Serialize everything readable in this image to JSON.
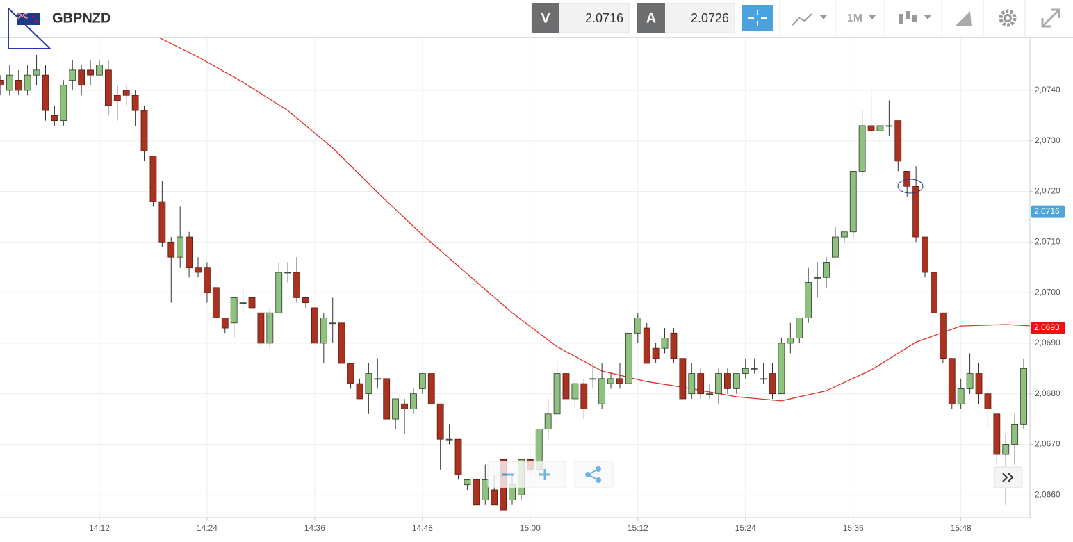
{
  "toolbar": {
    "symbol": "GBPNZD",
    "sell_label": "V",
    "sell_price": "2.0716",
    "buy_label": "A",
    "buy_price": "2.0726",
    "timeframe": "1M"
  },
  "chart_data": {
    "type": "candlestick",
    "x": [
      "14:01",
      "14:02",
      "14:03",
      "14:04",
      "14:05",
      "14:06",
      "14:07",
      "14:08",
      "14:09",
      "14:10",
      "14:11",
      "14:12",
      "14:13",
      "14:14",
      "14:15",
      "14:16",
      "14:17",
      "14:18",
      "14:19",
      "14:20",
      "14:21",
      "14:22",
      "14:23",
      "14:24",
      "14:25",
      "14:26",
      "14:27",
      "14:28",
      "14:29",
      "14:30",
      "14:31",
      "14:32",
      "14:33",
      "14:34",
      "14:35",
      "14:36",
      "14:37",
      "14:38",
      "14:39",
      "14:40",
      "14:41",
      "14:42",
      "14:43",
      "14:44",
      "14:45",
      "14:46",
      "14:47",
      "14:48",
      "14:49",
      "14:50",
      "14:51",
      "14:52",
      "14:53",
      "14:54",
      "14:55",
      "14:56",
      "14:57",
      "14:58",
      "14:59",
      "15:00",
      "15:01",
      "15:02",
      "15:03",
      "15:04",
      "15:05",
      "15:06",
      "15:07",
      "15:08",
      "15:09",
      "15:10",
      "15:11",
      "15:12",
      "15:13",
      "15:14",
      "15:15",
      "15:16",
      "15:17",
      "15:18",
      "15:19",
      "15:20",
      "15:21",
      "15:22",
      "15:23",
      "15:24",
      "15:25",
      "15:26",
      "15:27",
      "15:28",
      "15:29",
      "15:30",
      "15:31",
      "15:32",
      "15:33",
      "15:34",
      "15:35",
      "15:36",
      "15:37",
      "15:38",
      "15:39",
      "15:40",
      "15:41",
      "15:42",
      "15:43",
      "15:44",
      "15:45",
      "15:46",
      "15:47",
      "15:48",
      "15:49",
      "15:50",
      "15:51",
      "15:52",
      "15:53",
      "15:54",
      "15:55"
    ],
    "open": [
      2.0742,
      2.074,
      2.0742,
      2.074,
      2.0743,
      2.0743,
      2.0735,
      2.0734,
      2.0742,
      2.0744,
      2.0744,
      2.0743,
      2.0744,
      2.0739,
      2.074,
      2.0739,
      2.0736,
      2.0727,
      2.0718,
      2.071,
      2.0707,
      2.0711,
      2.0705,
      2.0705,
      2.0701,
      2.0695,
      2.0694,
      2.0698,
      2.0699,
      2.0696,
      2.069,
      2.0696,
      2.0704,
      2.0704,
      2.0699,
      2.0697,
      2.069,
      2.0694,
      2.0694,
      2.0686,
      2.0682,
      2.068,
      2.0683,
      2.0683,
      2.0675,
      2.0678,
      2.0677,
      2.0681,
      2.0684,
      2.0678,
      2.0671,
      2.0671,
      2.0662,
      2.0663,
      2.0659,
      2.0661,
      2.0667,
      2.0659,
      2.066,
      2.0667,
      2.0665,
      2.0673,
      2.0676,
      2.0684,
      2.0679,
      2.0682,
      2.0683,
      2.0678,
      2.0682,
      2.0683,
      2.0682,
      2.0692,
      2.0693,
      2.0689,
      2.0689,
      2.0692,
      2.0687,
      2.068,
      2.0684,
      2.068,
      2.068,
      2.0684,
      2.0681,
      2.0684,
      2.0685,
      2.0683,
      2.0684,
      2.068,
      2.069,
      2.0691,
      2.0695,
      2.0703,
      2.0703,
      2.0707,
      2.0711,
      2.0712,
      2.0724,
      2.0733,
      2.0732,
      2.0733,
      2.0734,
      2.0724,
      2.0721,
      2.0711,
      2.0704,
      2.0696,
      2.0687,
      2.0678,
      2.0681,
      2.0684,
      2.068,
      2.0676,
      2.0668,
      2.067,
      2.0674
    ],
    "high": [
      2.0743,
      2.0745,
      2.0744,
      2.0745,
      2.0747,
      2.0745,
      2.0737,
      2.0742,
      2.0746,
      2.0745,
      2.0746,
      2.0746,
      2.0746,
      2.0741,
      2.0741,
      2.074,
      2.0737,
      2.0727,
      2.0722,
      2.0711,
      2.0717,
      2.0712,
      2.0707,
      2.0706,
      2.0701,
      2.0695,
      2.0699,
      2.0701,
      2.0701,
      2.0696,
      2.0697,
      2.0706,
      2.0706,
      2.0707,
      2.0699,
      2.0697,
      2.0696,
      2.0699,
      2.0694,
      2.0686,
      2.0683,
      2.0686,
      2.0687,
      2.0683,
      2.0679,
      2.0679,
      2.0681,
      2.0684,
      2.0684,
      2.0678,
      2.0674,
      2.0671,
      2.0663,
      2.0663,
      2.0666,
      2.0664,
      2.0667,
      2.0664,
      2.0667,
      2.0667,
      2.0673,
      2.0679,
      2.0687,
      2.0684,
      2.0683,
      2.0683,
      2.0686,
      2.0686,
      2.0684,
      2.0686,
      2.0692,
      2.0696,
      2.0694,
      2.069,
      2.0693,
      2.0693,
      2.0687,
      2.0686,
      2.0685,
      2.0682,
      2.0685,
      2.0685,
      2.0684,
      2.0687,
      2.0687,
      2.0686,
      2.0686,
      2.0691,
      2.0694,
      2.0695,
      2.0705,
      2.0706,
      2.0707,
      2.0713,
      2.0712,
      2.0724,
      2.0736,
      2.074,
      2.0733,
      2.0738,
      2.0734,
      2.0724,
      2.0725,
      2.0711,
      2.0704,
      2.0696,
      2.0687,
      2.0683,
      2.0688,
      2.0686,
      2.0681,
      2.0676,
      2.0672,
      2.0676,
      2.0687
    ],
    "low": [
      2.0739,
      2.0739,
      2.0739,
      2.0739,
      2.0741,
      2.0734,
      2.0733,
      2.0733,
      2.074,
      2.0739,
      2.0741,
      2.0743,
      2.0735,
      2.0734,
      2.0737,
      2.0733,
      2.0726,
      2.0717,
      2.0709,
      2.0698,
      2.0705,
      2.0703,
      2.0703,
      2.0698,
      2.0695,
      2.0692,
      2.0691,
      2.0696,
      2.0695,
      2.0689,
      2.0689,
      2.0696,
      2.0702,
      2.0698,
      2.0697,
      2.069,
      2.0686,
      2.069,
      2.0686,
      2.0681,
      2.0679,
      2.0676,
      2.0681,
      2.0675,
      2.0673,
      2.0672,
      2.0676,
      2.068,
      2.0678,
      2.0665,
      2.067,
      2.0663,
      2.0661,
      2.0658,
      2.0658,
      2.0658,
      2.0657,
      2.0658,
      2.0659,
      2.0664,
      2.0664,
      2.0671,
      2.0676,
      2.0678,
      2.0677,
      2.0675,
      2.0681,
      2.0677,
      2.0681,
      2.0681,
      2.0682,
      2.069,
      2.0686,
      2.0686,
      2.0688,
      2.0686,
      2.0679,
      2.0679,
      2.0679,
      2.0679,
      2.0678,
      2.068,
      2.068,
      2.0683,
      2.0684,
      2.0682,
      2.0679,
      2.068,
      2.0688,
      2.069,
      2.0694,
      2.0699,
      2.0701,
      2.0707,
      2.071,
      2.0711,
      2.0723,
      2.0731,
      2.0729,
      2.0731,
      2.0724,
      2.0719,
      2.071,
      2.0703,
      2.0696,
      2.0686,
      2.0677,
      2.0677,
      2.068,
      2.0678,
      2.0673,
      2.0666,
      2.0658,
      2.0666,
      2.0673
    ],
    "close": [
      2.0741,
      2.0743,
      2.074,
      2.0743,
      2.0744,
      2.0736,
      2.0734,
      2.0741,
      2.0744,
      2.0741,
      2.0743,
      2.0745,
      2.0737,
      2.0738,
      2.0739,
      2.0736,
      2.0728,
      2.0718,
      2.071,
      2.0707,
      2.0711,
      2.0705,
      2.0704,
      2.07,
      2.0695,
      2.0693,
      2.0699,
      2.0698,
      2.0697,
      2.069,
      2.0696,
      2.0704,
      2.0704,
      2.0699,
      2.0698,
      2.069,
      2.0695,
      2.0694,
      2.0686,
      2.0682,
      2.0679,
      2.0684,
      2.0683,
      2.0675,
      2.0679,
      2.0677,
      2.068,
      2.0684,
      2.0678,
      2.0671,
      2.0671,
      2.0664,
      2.0663,
      2.0658,
      2.0663,
      2.0658,
      2.0657,
      2.0662,
      2.0667,
      2.0665,
      2.0673,
      2.0676,
      2.0684,
      2.0679,
      2.0682,
      2.0677,
      2.0683,
      2.0683,
      2.0683,
      2.0682,
      2.0692,
      2.0695,
      2.0686,
      2.0687,
      2.0691,
      2.0687,
      2.0679,
      2.0684,
      2.068,
      2.068,
      2.0684,
      2.0681,
      2.0684,
      2.0685,
      2.0685,
      2.0683,
      2.068,
      2.069,
      2.0691,
      2.0695,
      2.0702,
      2.0703,
      2.0706,
      2.0711,
      2.0712,
      2.0724,
      2.0733,
      2.0732,
      2.0733,
      2.0733,
      2.0726,
      2.0721,
      2.0711,
      2.0704,
      2.0696,
      2.0687,
      2.0678,
      2.0681,
      2.0684,
      2.068,
      2.0677,
      2.0668,
      2.067,
      2.0674,
      2.0685
    ],
    "up_color": "#8fc17f",
    "down_color": "#aa3220",
    "moving_average": {
      "color": "#e0302a",
      "x": [
        "14:18",
        "14:23",
        "14:28",
        "14:33",
        "14:38",
        "14:43",
        "14:48",
        "14:53",
        "14:58",
        "15:03",
        "15:08",
        "15:13",
        "15:18",
        "15:23",
        "15:28",
        "15:33",
        "15:38",
        "15:43",
        "15:48",
        "15:53",
        "15:56"
      ],
      "values": [
        2.0751,
        2.07466,
        2.07416,
        2.0736,
        2.07286,
        2.07198,
        2.07114,
        2.07037,
        2.0696,
        2.06893,
        2.06845,
        2.06824,
        2.0681,
        2.06794,
        2.06786,
        2.06806,
        2.06847,
        2.06902,
        2.06934,
        2.06937,
        2.06934
      ]
    },
    "price_markers": [
      {
        "value": 2.0716,
        "label": "2,0716",
        "color": "#4ea6d8"
      },
      {
        "value": 2.0693,
        "label": "2,0693",
        "color": "#ee1111"
      }
    ],
    "xlim": [
      "14:00",
      "15:56"
    ],
    "xticks": [
      "14:12",
      "14:24",
      "14:36",
      "14:48",
      "15:00",
      "15:12",
      "15:24",
      "15:36",
      "15:48"
    ],
    "ylim": [
      2.06555,
      2.07503
    ],
    "yticks": [
      {
        "value": 2.066,
        "label": "2,0660"
      },
      {
        "value": 2.067,
        "label": "2,0670"
      },
      {
        "value": 2.068,
        "label": "2,0680"
      },
      {
        "value": 2.069,
        "label": "2,0690"
      },
      {
        "value": 2.07,
        "label": "2,0700"
      },
      {
        "value": 2.071,
        "label": "2,0710"
      },
      {
        "value": 2.072,
        "label": "2,0720"
      },
      {
        "value": 2.073,
        "label": "2,0730"
      },
      {
        "value": 2.074,
        "label": "2,0740"
      }
    ],
    "grid": true
  }
}
